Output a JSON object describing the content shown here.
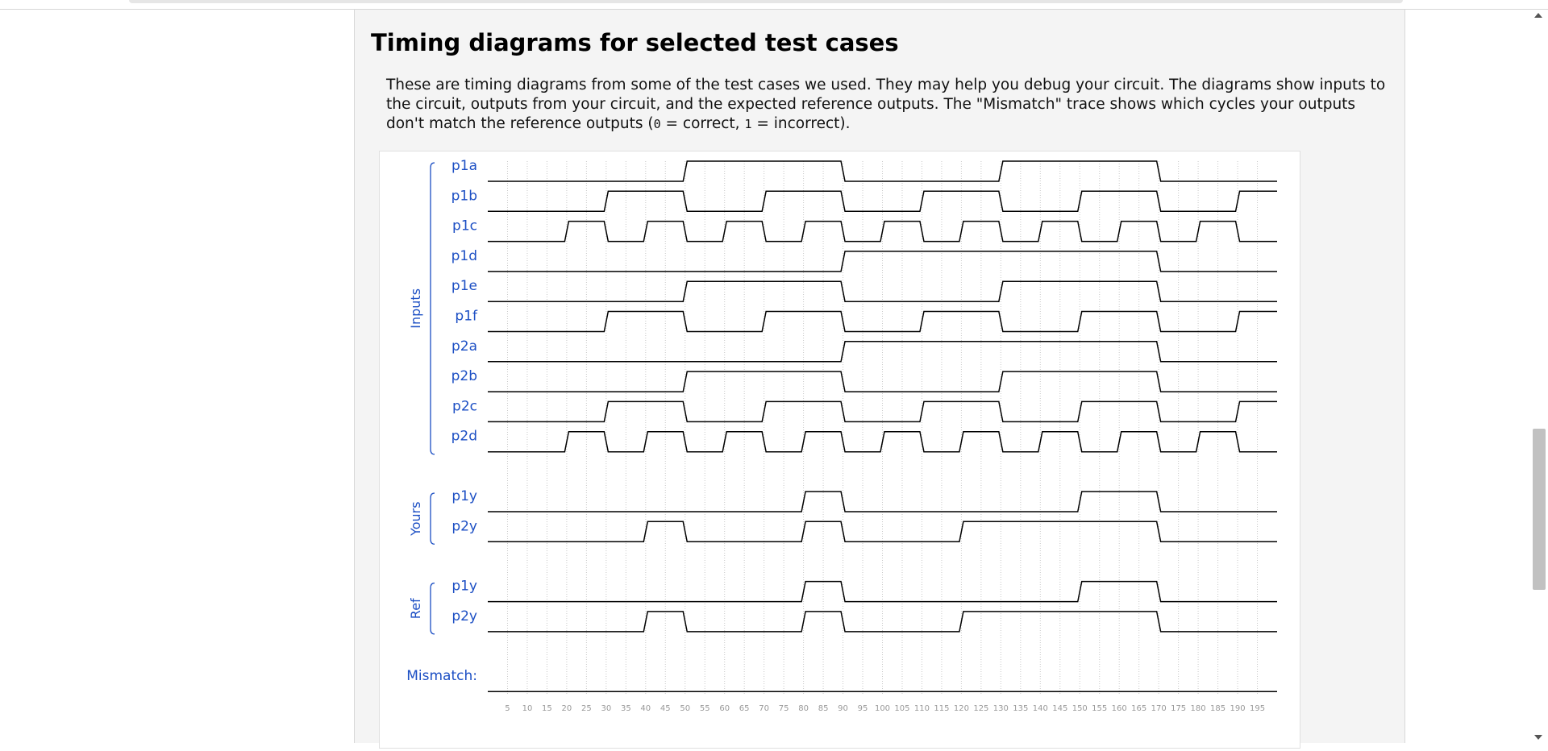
{
  "section": {
    "title": "Timing diagrams for selected test cases",
    "intro_parts": [
      "These are timing diagrams from some of the test cases we used. They may help you debug your circuit. The diagrams show inputs to the circuit, outputs from your circuit, and the expected reference outputs. The \"Mismatch\" trace shows which cycles your outputs don't match the reference outputs (",
      "0",
      " = correct, ",
      "1",
      " = incorrect)."
    ]
  },
  "waveform": {
    "groups": [
      {
        "label": "Inputs",
        "signals": [
          {
            "name": "p1a",
            "transitions": [
              0,
              50,
              90,
              130,
              170
            ]
          },
          {
            "name": "p1b",
            "transitions": [
              0,
              30,
              50,
              70,
              90,
              110,
              130,
              150,
              170,
              190
            ]
          },
          {
            "name": "p1c",
            "transitions": [
              0,
              20,
              30,
              40,
              50,
              60,
              70,
              80,
              90,
              100,
              110,
              120,
              130,
              140,
              150,
              160,
              170,
              180,
              190
            ]
          },
          {
            "name": "p1d",
            "transitions": [
              0,
              90,
              170
            ]
          },
          {
            "name": "p1e",
            "transitions": [
              0,
              50,
              90,
              130,
              170
            ]
          },
          {
            "name": "p1f",
            "transitions": [
              0,
              30,
              50,
              70,
              90,
              110,
              130,
              150,
              170,
              190
            ]
          },
          {
            "name": "p2a",
            "transitions": [
              0,
              90,
              170
            ]
          },
          {
            "name": "p2b",
            "transitions": [
              0,
              50,
              90,
              130,
              170
            ]
          },
          {
            "name": "p2c",
            "transitions": [
              0,
              30,
              50,
              70,
              90,
              110,
              130,
              150,
              170,
              190
            ]
          },
          {
            "name": "p2d",
            "transitions": [
              0,
              20,
              30,
              40,
              50,
              60,
              70,
              80,
              90,
              100,
              110,
              120,
              130,
              140,
              150,
              160,
              170,
              180,
              190
            ]
          }
        ]
      },
      {
        "label": "Yours",
        "signals": [
          {
            "name": "p1y",
            "transitions": [
              0,
              80,
              90,
              150,
              170
            ]
          },
          {
            "name": "p2y",
            "transitions": [
              0,
              40,
              50,
              80,
              90,
              120,
              170
            ]
          }
        ]
      },
      {
        "label": "Ref",
        "signals": [
          {
            "name": "p1y",
            "transitions": [
              0,
              80,
              90,
              150,
              170
            ]
          },
          {
            "name": "p2y",
            "transitions": [
              0,
              40,
              50,
              80,
              90,
              120,
              170
            ]
          }
        ]
      }
    ],
    "mismatch": {
      "name": "Mismatch:",
      "transitions": [
        0
      ]
    },
    "time_start": 0,
    "time_end": 200,
    "tick_labels": [
      "5",
      "10",
      "15",
      "20",
      "25",
      "30",
      "35",
      "40",
      "45",
      "50",
      "55",
      "60",
      "65",
      "70",
      "75",
      "80",
      "85",
      "90",
      "95",
      "100",
      "105",
      "110",
      "115",
      "120",
      "125",
      "130",
      "135",
      "140",
      "145",
      "150",
      "155",
      "160",
      "165",
      "170",
      "175",
      "180",
      "185",
      "190",
      "195"
    ],
    "colors": {
      "label": "#1c4fc4",
      "trace": "#000000",
      "grid": "#c8c8c8",
      "tick": "#999999"
    }
  }
}
